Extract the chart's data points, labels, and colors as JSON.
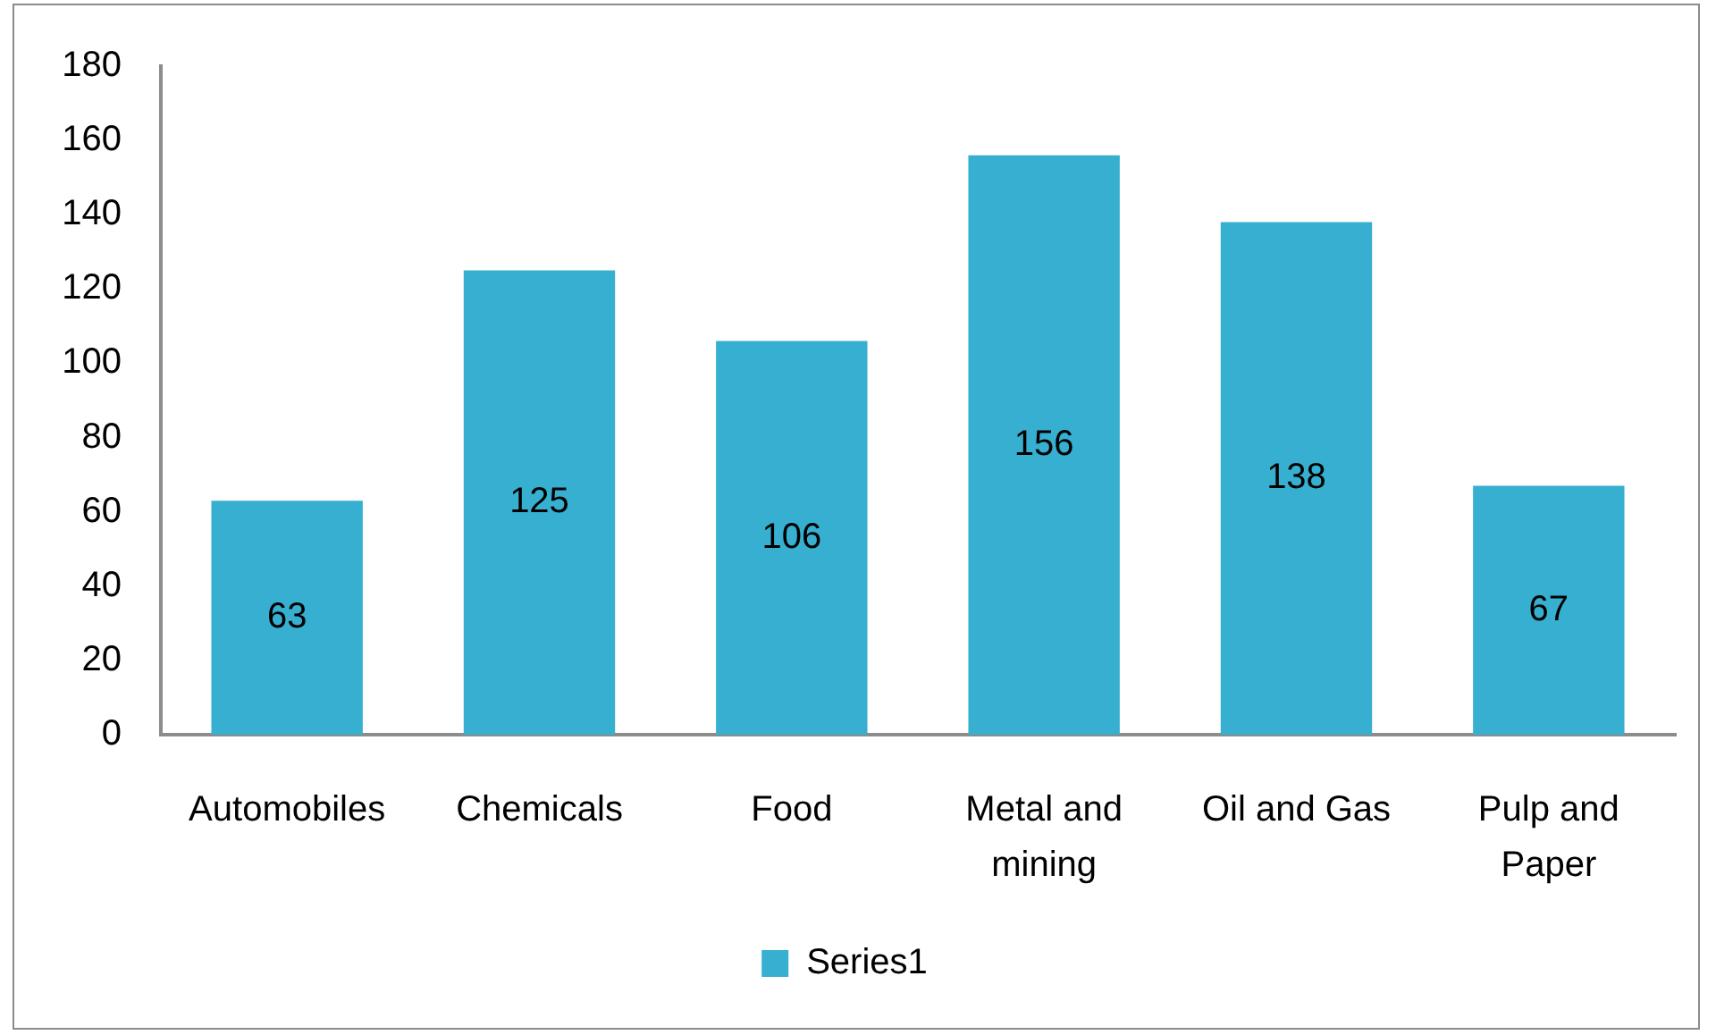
{
  "chart_data": {
    "type": "bar",
    "categories": [
      "Automobiles",
      "Chemicals",
      "Food",
      "Metal and mining",
      "Oil and Gas",
      "Pulp and Paper"
    ],
    "series": [
      {
        "name": "Series1",
        "color": "#37afd0",
        "values": [
          63,
          125,
          106,
          156,
          138,
          67
        ]
      }
    ],
    "ylim": [
      0,
      180
    ],
    "yticks": [
      0,
      20,
      40,
      60,
      80,
      100,
      120,
      140,
      160,
      180
    ],
    "grid": false,
    "legend": "bottom",
    "data_labels": true
  }
}
